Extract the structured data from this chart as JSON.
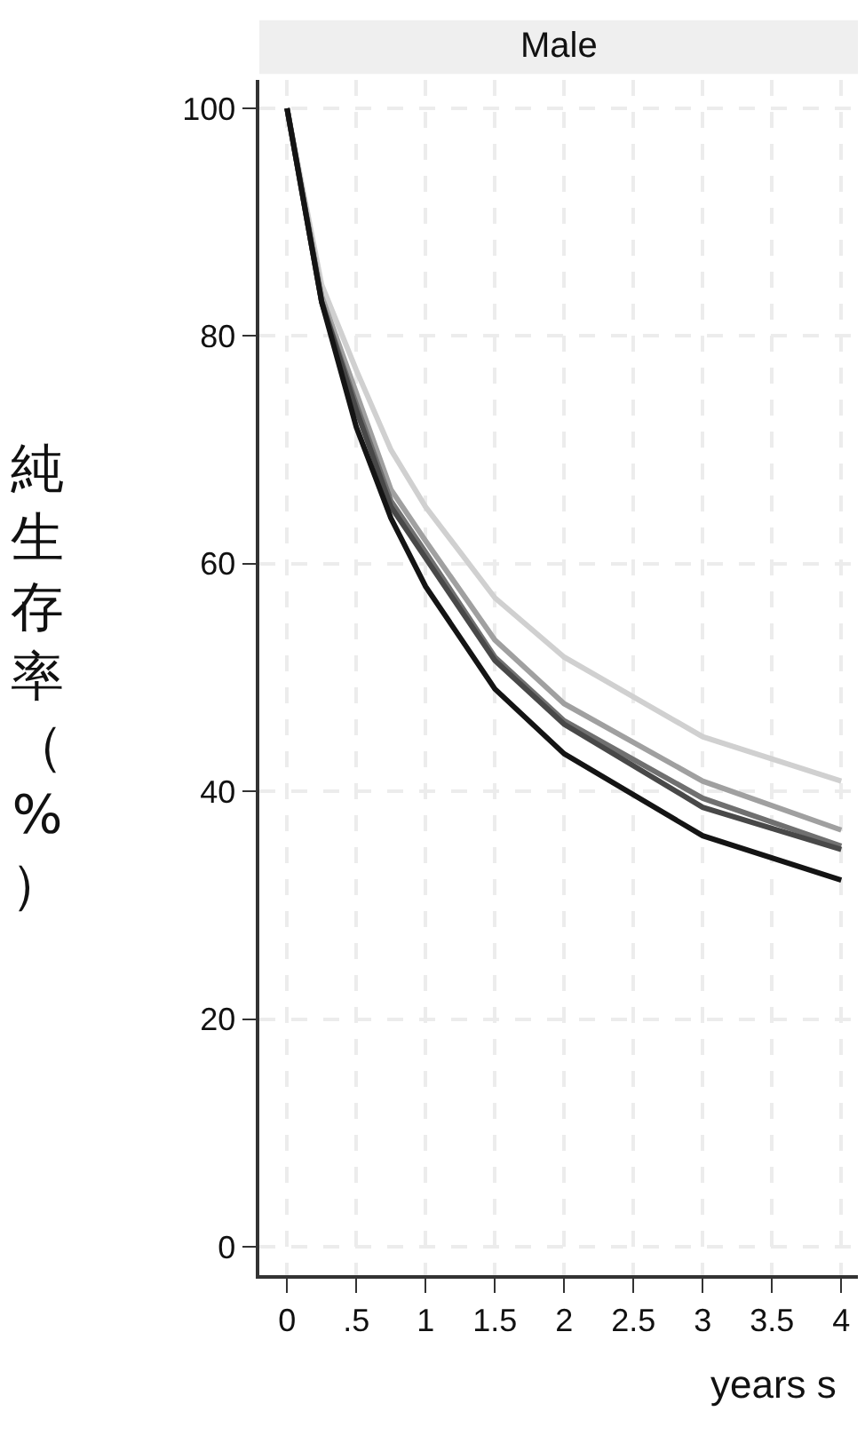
{
  "chart_data": {
    "type": "line",
    "title": "Male",
    "xlabel": "years s",
    "ylabel": "純生存率（%）",
    "x": [
      0,
      0.25,
      0.5,
      0.75,
      1,
      1.5,
      2,
      3,
      4
    ],
    "series": [
      {
        "color": "#d0d0d0",
        "values": [
          100,
          84.5,
          77,
          70,
          65,
          57,
          51.8,
          44.8,
          40.9
        ]
      },
      {
        "color": "#a0a0a0",
        "values": [
          100,
          83.5,
          75,
          66.5,
          62,
          53.3,
          47.7,
          40.9,
          36.6
        ]
      },
      {
        "color": "#707070",
        "values": [
          100,
          83,
          74,
          65.5,
          61,
          51.8,
          46.2,
          39.4,
          35.2
        ]
      },
      {
        "color": "#484848",
        "values": [
          100,
          83,
          73.5,
          65,
          60.5,
          51.5,
          45.9,
          38.6,
          34.9
        ]
      },
      {
        "color": "#141414",
        "values": [
          100,
          83,
          72,
          64,
          58,
          49,
          43.3,
          36.1,
          32.2
        ]
      }
    ],
    "xlim": [
      -0.2,
      4.12
    ],
    "ylim": [
      -2.5,
      102.5
    ],
    "xticks": [
      0,
      {
        "value": 0.5,
        "label": ".5"
      },
      1,
      1.5,
      2,
      2.5,
      3,
      3.5,
      4
    ],
    "yticks": [
      0,
      20,
      40,
      60,
      80,
      100
    ],
    "grid": true,
    "line_style": "solid",
    "marker": "none"
  }
}
